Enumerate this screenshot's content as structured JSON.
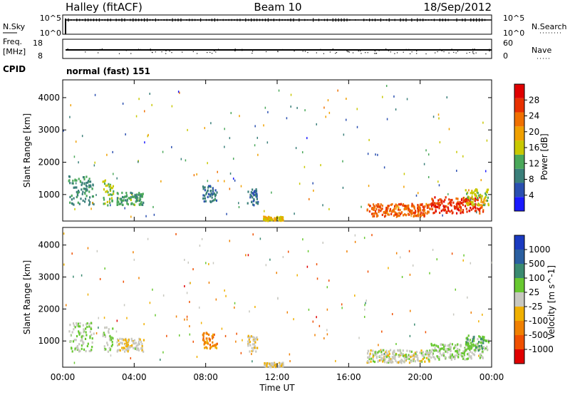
{
  "header": {
    "station": "Halley (fitACF)",
    "beam": "Beam 10",
    "date": "18/Sep/2012"
  },
  "top_panels": {
    "nsky_label": "N.Sky",
    "nsky_ticks": [
      "10^5",
      "10^0"
    ],
    "nsearch_label": "N.Search",
    "nsearch_ticks": [
      "10^5",
      "10^0"
    ],
    "freq_label_1": "Freq.",
    "freq_label_2": "[MHz]",
    "freq_ticks": [
      "18",
      "8"
    ],
    "nave_label": "Nave",
    "nave_ticks": [
      "60",
      "0"
    ],
    "cpid_label": "CPID",
    "cpid_text": "normal (fast) 151"
  },
  "x_axis": {
    "label": "Time UT",
    "ticks": [
      "00:00",
      "04:00",
      "08:00",
      "12:00",
      "16:00",
      "20:00",
      "00:00"
    ]
  },
  "colors": {
    "power_scale": [
      "#1a1aff",
      "#2a4fb0",
      "#3a7f7a",
      "#4aa85a",
      "#c8c800",
      "#f0a000",
      "#f07000",
      "#e83000",
      "#e00000"
    ],
    "velocity_scale": [
      "#e00000",
      "#f05000",
      "#f08000",
      "#f0b000",
      "#c8c8c0",
      "#68c830",
      "#3a8a70",
      "#2a5fa0",
      "#1a3ac0"
    ]
  },
  "chart_data": [
    {
      "type": "heatmap",
      "ylabel": "Slant Range [km]",
      "xlabel": "Time UT",
      "xlim": [
        "00:00",
        "24:00"
      ],
      "ylim": [
        180,
        4550
      ],
      "yticks": [
        "1000",
        "2000",
        "3000",
        "4000"
      ],
      "colorbar": {
        "label": "Power [dB]",
        "ticks": [
          "4",
          "8",
          "12",
          "16",
          "20",
          "24",
          "28"
        ],
        "range": [
          0,
          32
        ]
      },
      "clusters": [
        {
          "t": [
            0.3,
            1.7
          ],
          "r": [
            700,
            1600
          ],
          "value": 10
        },
        {
          "t": [
            2.2,
            2.8
          ],
          "r": [
            700,
            1500
          ],
          "value": 14
        },
        {
          "t": [
            3.0,
            4.5
          ],
          "r": [
            700,
            1100
          ],
          "value": 12
        },
        {
          "t": [
            7.8,
            8.6
          ],
          "r": [
            800,
            1300
          ],
          "value": 8
        },
        {
          "t": [
            10.3,
            10.9
          ],
          "r": [
            700,
            1200
          ],
          "value": 8
        },
        {
          "t": [
            11.2,
            12.3
          ],
          "r": [
            220,
            350
          ],
          "value": 18
        },
        {
          "t": [
            17.0,
            20.5
          ],
          "r": [
            350,
            750
          ],
          "value": 24
        },
        {
          "t": [
            20.5,
            23.5
          ],
          "r": [
            450,
            950
          ],
          "value": 27
        },
        {
          "t": [
            22.5,
            23.8
          ],
          "r": [
            700,
            1200
          ],
          "value": 16
        }
      ]
    },
    {
      "type": "heatmap",
      "ylabel": "Slant Range [km]",
      "xlabel": "Time UT",
      "xlim": [
        "00:00",
        "24:00"
      ],
      "ylim": [
        180,
        4550
      ],
      "yticks": [
        "1000",
        "2000",
        "3000",
        "4000"
      ],
      "colorbar": {
        "label": "Velocity [m s^-1]",
        "ticks": [
          "-1000",
          "-500",
          "-100",
          "-25",
          "25",
          "100",
          "500",
          "1000"
        ],
        "range": [
          -1200,
          1200
        ]
      },
      "clusters": [
        {
          "t": [
            0.3,
            1.7
          ],
          "r": [
            700,
            1600
          ],
          "value": 120
        },
        {
          "t": [
            2.2,
            2.8
          ],
          "r": [
            700,
            1500
          ],
          "value": 110
        },
        {
          "t": [
            3.0,
            4.5
          ],
          "r": [
            700,
            1100
          ],
          "value": -80
        },
        {
          "t": [
            7.8,
            8.6
          ],
          "r": [
            800,
            1300
          ],
          "value": -500
        },
        {
          "t": [
            10.3,
            10.9
          ],
          "r": [
            700,
            1200
          ],
          "value": -150
        },
        {
          "t": [
            11.2,
            12.3
          ],
          "r": [
            220,
            350
          ],
          "value": -100
        },
        {
          "t": [
            17.0,
            20.5
          ],
          "r": [
            350,
            750
          ],
          "value": 0
        },
        {
          "t": [
            20.5,
            23.5
          ],
          "r": [
            450,
            950
          ],
          "value": 100
        },
        {
          "t": [
            22.5,
            23.8
          ],
          "r": [
            700,
            1200
          ],
          "value": 300
        }
      ]
    }
  ]
}
